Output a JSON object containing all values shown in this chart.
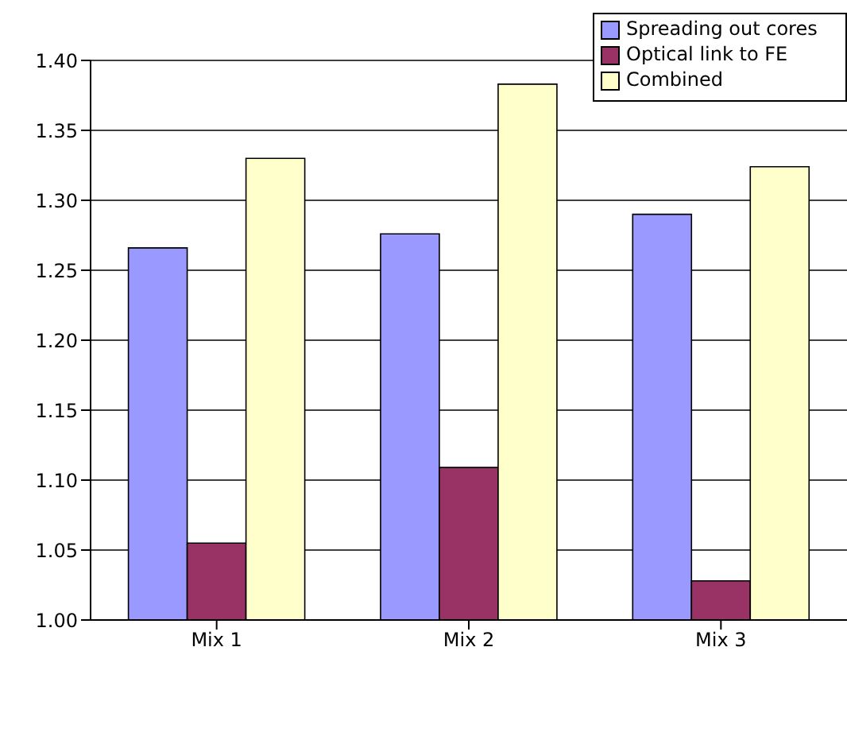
{
  "chart_data": {
    "type": "bar",
    "categories": [
      "Mix 1",
      "Mix 2",
      "Mix 3"
    ],
    "series": [
      {
        "name": "Spreading out cores",
        "color": "#9999ff",
        "values": [
          1.266,
          1.276,
          1.29
        ]
      },
      {
        "name": "Optical link to FE",
        "color": "#993366",
        "values": [
          1.055,
          1.109,
          1.028
        ]
      },
      {
        "name": "Combined",
        "color": "#ffffcc",
        "values": [
          1.33,
          1.383,
          1.324
        ]
      }
    ],
    "ylim": [
      1,
      1.4
    ],
    "yticks": [
      {
        "value": 1,
        "label": "1.00"
      },
      {
        "value": 1.05,
        "label": "1.05"
      },
      {
        "value": 1.1,
        "label": "1.10"
      },
      {
        "value": 1.15,
        "label": "1.15"
      },
      {
        "value": 1.2,
        "label": "1.20"
      },
      {
        "value": 1.25,
        "label": "1.25"
      },
      {
        "value": 1.3,
        "label": "1.30"
      },
      {
        "value": 1.35,
        "label": "1.35"
      },
      {
        "value": 1.4,
        "label": "1.40"
      }
    ],
    "grid": "y",
    "legend": "top right"
  }
}
